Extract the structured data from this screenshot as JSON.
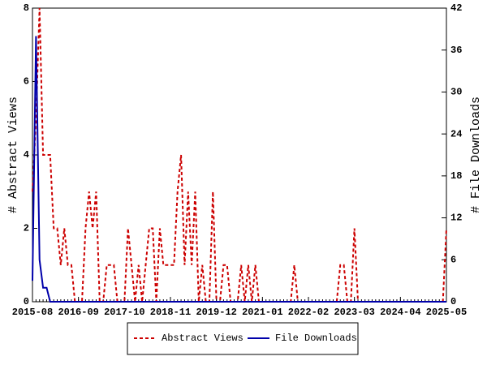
{
  "chart_data": {
    "type": "line",
    "x": [
      "2015-08",
      "2015-09",
      "2015-10",
      "2015-11",
      "2015-12",
      "2016-01",
      "2016-02",
      "2016-03",
      "2016-04",
      "2016-05",
      "2016-06",
      "2016-07",
      "2016-08",
      "2016-09",
      "2016-10",
      "2016-11",
      "2016-12",
      "2017-01",
      "2017-02",
      "2017-03",
      "2017-04",
      "2017-05",
      "2017-06",
      "2017-07",
      "2017-08",
      "2017-09",
      "2017-10",
      "2017-11",
      "2017-12",
      "2018-01",
      "2018-02",
      "2018-03",
      "2018-04",
      "2018-05",
      "2018-06",
      "2018-07",
      "2018-08",
      "2018-09",
      "2018-10",
      "2018-11",
      "2018-12",
      "2019-01",
      "2019-02",
      "2019-03",
      "2019-04",
      "2019-05",
      "2019-06",
      "2019-07",
      "2019-08",
      "2019-09",
      "2019-10",
      "2019-11",
      "2019-12",
      "2020-01",
      "2020-02",
      "2020-03",
      "2020-04",
      "2020-05",
      "2020-06",
      "2020-07",
      "2020-08",
      "2020-09",
      "2020-10",
      "2020-11",
      "2020-12",
      "2021-01",
      "2021-02",
      "2021-03",
      "2021-04",
      "2021-05",
      "2021-06",
      "2021-07",
      "2021-08",
      "2021-09",
      "2021-10",
      "2021-11",
      "2021-12",
      "2022-01",
      "2022-02",
      "2022-03",
      "2022-04",
      "2022-05",
      "2022-06",
      "2022-07",
      "2022-08",
      "2022-09",
      "2022-10",
      "2022-11",
      "2022-12",
      "2023-01",
      "2023-02",
      "2023-03",
      "2023-04",
      "2023-05",
      "2023-06",
      "2023-07",
      "2023-08",
      "2023-09",
      "2023-10",
      "2023-11",
      "2023-12",
      "2024-01",
      "2024-02",
      "2024-03",
      "2024-04",
      "2024-05",
      "2024-06",
      "2024-07",
      "2024-08",
      "2024-09",
      "2024-10",
      "2024-11",
      "2024-12",
      "2025-01",
      "2025-02",
      "2025-03",
      "2025-04",
      "2025-05"
    ],
    "xticks": [
      "2015-08",
      "2016-09",
      "2017-10",
      "2018-11",
      "2019-12",
      "2021-01",
      "2022-02",
      "2023-03",
      "2024-04",
      "2025-05"
    ],
    "ylabel": "# Abstract Views",
    "y2label": "# File Downloads",
    "ylim": [
      0,
      8
    ],
    "yticks": [
      0,
      2,
      4,
      6,
      8
    ],
    "y2lim": [
      0,
      42
    ],
    "y2ticks": [
      0,
      6,
      12,
      18,
      24,
      30,
      36,
      42
    ],
    "series": [
      {
        "name": "Abstract Views",
        "color": "#cc0000",
        "dashed": true,
        "values": [
          3,
          5,
          8,
          4,
          4,
          4,
          2,
          2,
          1,
          2,
          1,
          1,
          0,
          0,
          0,
          2,
          3,
          2,
          3,
          0,
          0,
          1,
          1,
          1,
          0,
          0,
          0,
          2,
          1,
          0,
          1,
          0,
          1,
          2,
          2,
          0,
          2,
          1,
          1,
          1,
          1,
          3,
          4,
          1,
          3,
          1,
          3,
          0,
          1,
          0,
          0,
          3,
          0,
          0,
          1,
          1,
          0,
          0,
          0,
          1,
          0,
          1,
          0,
          1,
          0,
          0,
          0,
          0,
          0,
          0,
          0,
          0,
          0,
          0,
          1,
          0,
          0,
          0,
          0,
          0,
          0,
          0,
          0,
          0,
          0,
          0,
          0,
          1,
          1,
          0,
          0,
          2,
          0,
          0,
          0,
          0,
          0,
          0,
          0,
          0,
          0,
          0,
          0,
          0,
          0,
          0,
          0,
          0,
          0,
          0,
          0,
          0,
          0,
          0,
          0,
          0,
          0,
          2
        ]
      },
      {
        "name": "File Downloads",
        "color": "#0000aa",
        "axis": "y2",
        "values": [
          3,
          38,
          6,
          2,
          2,
          0,
          0,
          0,
          0,
          0,
          0,
          0,
          0,
          0,
          0,
          0,
          0,
          0,
          0,
          0,
          0,
          0,
          0,
          0,
          0,
          0,
          0,
          0,
          0,
          0,
          0,
          0,
          0,
          0,
          0,
          0,
          0,
          0,
          0,
          0,
          0,
          0,
          0,
          0,
          0,
          0,
          0,
          0,
          0,
          0,
          0,
          0,
          0,
          0,
          0,
          0,
          0,
          0,
          0,
          0,
          0,
          0,
          0,
          0,
          0,
          0,
          0,
          0,
          0,
          0,
          0,
          0,
          0,
          0,
          0,
          0,
          0,
          0,
          0,
          0,
          0,
          0,
          0,
          0,
          0,
          0,
          0,
          0,
          0,
          0,
          0,
          0,
          0,
          0,
          0,
          0,
          0,
          0,
          0,
          0,
          0,
          0,
          0,
          0,
          0,
          0,
          0,
          0,
          0,
          0,
          0,
          0,
          0,
          0,
          0,
          0,
          0,
          0
        ]
      }
    ]
  }
}
